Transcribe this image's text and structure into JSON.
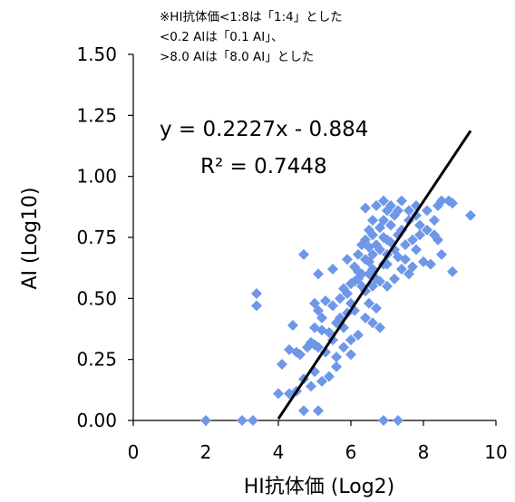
{
  "chart_data": {
    "type": "scatter",
    "title": "",
    "notes": [
      "※HI抗体価<1:8は「1:4」とした",
      "<0.2 AIは「0.1 AI」、",
      ">8.0 AIは「8.0 AI」とした"
    ],
    "xlabel": "HI抗体価 (Log2)",
    "ylabel": "AI (Log10)",
    "xlim": [
      0,
      10
    ],
    "ylim": [
      0,
      1.5
    ],
    "x_ticks": [
      "0",
      "2",
      "4",
      "6",
      "8",
      "10"
    ],
    "y_ticks": [
      "0.00",
      "0.25",
      "0.50",
      "0.75",
      "1.00",
      "1.25",
      "1.50"
    ],
    "grid": false,
    "marker_color": "#6e97e8",
    "trendline": {
      "equation": "y = 0.2227x - 0.884",
      "r2": "R² = 0.7448",
      "slope": 0.2227,
      "intercept": -0.884,
      "x_range": [
        4.0,
        9.3
      ],
      "color": "#000000"
    },
    "series": [
      {
        "points": [
          [
            2.0,
            0.0
          ],
          [
            3.0,
            0.0
          ],
          [
            3.3,
            0.0
          ],
          [
            6.9,
            0.0
          ],
          [
            7.3,
            0.0
          ],
          [
            3.4,
            0.52
          ],
          [
            3.4,
            0.47
          ],
          [
            4.0,
            0.11
          ],
          [
            4.3,
            0.11
          ],
          [
            4.5,
            0.12
          ],
          [
            4.7,
            0.04
          ],
          [
            5.1,
            0.04
          ],
          [
            4.1,
            0.23
          ],
          [
            4.3,
            0.29
          ],
          [
            4.5,
            0.28
          ],
          [
            4.4,
            0.39
          ],
          [
            4.6,
            0.27
          ],
          [
            4.8,
            0.3
          ],
          [
            4.9,
            0.32
          ],
          [
            5.0,
            0.31
          ],
          [
            4.7,
            0.68
          ],
          [
            5.1,
            0.6
          ],
          [
            5.5,
            0.62
          ],
          [
            5.0,
            0.48
          ],
          [
            5.1,
            0.45
          ],
          [
            5.2,
            0.42
          ],
          [
            5.3,
            0.49
          ],
          [
            5.5,
            0.47
          ],
          [
            5.0,
            0.38
          ],
          [
            5.2,
            0.37
          ],
          [
            5.4,
            0.36
          ],
          [
            5.1,
            0.3
          ],
          [
            5.3,
            0.28
          ],
          [
            5.6,
            0.26
          ],
          [
            5.0,
            0.2
          ],
          [
            5.2,
            0.16
          ],
          [
            5.4,
            0.18
          ],
          [
            4.7,
            0.17
          ],
          [
            4.9,
            0.14
          ],
          [
            5.7,
            0.5
          ],
          [
            5.8,
            0.54
          ],
          [
            5.9,
            0.52
          ],
          [
            6.0,
            0.56
          ],
          [
            6.0,
            0.48
          ],
          [
            6.1,
            0.45
          ],
          [
            6.2,
            0.58
          ],
          [
            6.3,
            0.55
          ],
          [
            6.4,
            0.53
          ],
          [
            6.4,
            0.66
          ],
          [
            6.5,
            0.6
          ],
          [
            6.6,
            0.62
          ],
          [
            6.6,
            0.68
          ],
          [
            6.7,
            0.72
          ],
          [
            6.8,
            0.7
          ],
          [
            6.9,
            0.75
          ],
          [
            7.0,
            0.74
          ],
          [
            6.5,
            0.48
          ],
          [
            6.7,
            0.46
          ],
          [
            6.6,
            0.4
          ],
          [
            6.8,
            0.38
          ],
          [
            6.0,
            0.33
          ],
          [
            5.8,
            0.38
          ],
          [
            5.5,
            0.33
          ],
          [
            5.6,
            0.22
          ],
          [
            5.9,
            0.66
          ],
          [
            6.1,
            0.63
          ],
          [
            6.3,
            0.72
          ],
          [
            6.2,
            0.68
          ],
          [
            6.5,
            0.78
          ],
          [
            6.6,
            0.82
          ],
          [
            6.7,
            0.88
          ],
          [
            6.9,
            0.9
          ],
          [
            7.1,
            0.88
          ],
          [
            7.3,
            0.86
          ],
          [
            7.4,
            0.9
          ],
          [
            7.6,
            0.86
          ],
          [
            7.8,
            0.84
          ],
          [
            7.9,
            0.8
          ],
          [
            8.1,
            0.78
          ],
          [
            8.3,
            0.82
          ],
          [
            8.4,
            0.88
          ],
          [
            8.5,
            0.9
          ],
          [
            8.7,
            0.9
          ],
          [
            8.8,
            0.89
          ],
          [
            9.3,
            0.84
          ],
          [
            8.8,
            0.61
          ],
          [
            8.5,
            0.68
          ],
          [
            8.4,
            0.74
          ],
          [
            8.0,
            0.65
          ],
          [
            8.2,
            0.64
          ],
          [
            7.7,
            0.63
          ],
          [
            7.6,
            0.6
          ],
          [
            7.4,
            0.62
          ],
          [
            7.2,
            0.58
          ],
          [
            7.0,
            0.55
          ],
          [
            7.0,
            0.64
          ],
          [
            7.2,
            0.7
          ],
          [
            7.3,
            0.76
          ],
          [
            7.5,
            0.72
          ],
          [
            7.7,
            0.74
          ],
          [
            7.8,
            0.7
          ],
          [
            7.5,
            0.66
          ],
          [
            7.1,
            0.8
          ],
          [
            7.2,
            0.84
          ],
          [
            7.0,
            0.86
          ],
          [
            6.9,
            0.82
          ],
          [
            6.8,
            0.79
          ],
          [
            6.5,
            0.71
          ],
          [
            6.4,
            0.74
          ],
          [
            6.2,
            0.61
          ],
          [
            6.1,
            0.57
          ],
          [
            5.9,
            0.44
          ],
          [
            5.7,
            0.42
          ],
          [
            5.6,
            0.4
          ],
          [
            5.8,
            0.3
          ],
          [
            6.0,
            0.27
          ],
          [
            6.2,
            0.35
          ],
          [
            6.4,
            0.42
          ],
          [
            6.6,
            0.55
          ],
          [
            6.8,
            0.57
          ],
          [
            6.9,
            0.64
          ],
          [
            7.0,
            0.68
          ],
          [
            7.1,
            0.73
          ],
          [
            7.3,
            0.67
          ],
          [
            7.4,
            0.78
          ],
          [
            7.6,
            0.82
          ],
          [
            7.9,
            0.76
          ],
          [
            8.1,
            0.86
          ],
          [
            8.3,
            0.76
          ],
          [
            7.8,
            0.88
          ],
          [
            6.4,
            0.87
          ],
          [
            6.6,
            0.76
          ],
          [
            6.5,
            0.65
          ],
          [
            6.3,
            0.6
          ],
          [
            6.7,
            0.58
          ]
        ]
      }
    ]
  }
}
